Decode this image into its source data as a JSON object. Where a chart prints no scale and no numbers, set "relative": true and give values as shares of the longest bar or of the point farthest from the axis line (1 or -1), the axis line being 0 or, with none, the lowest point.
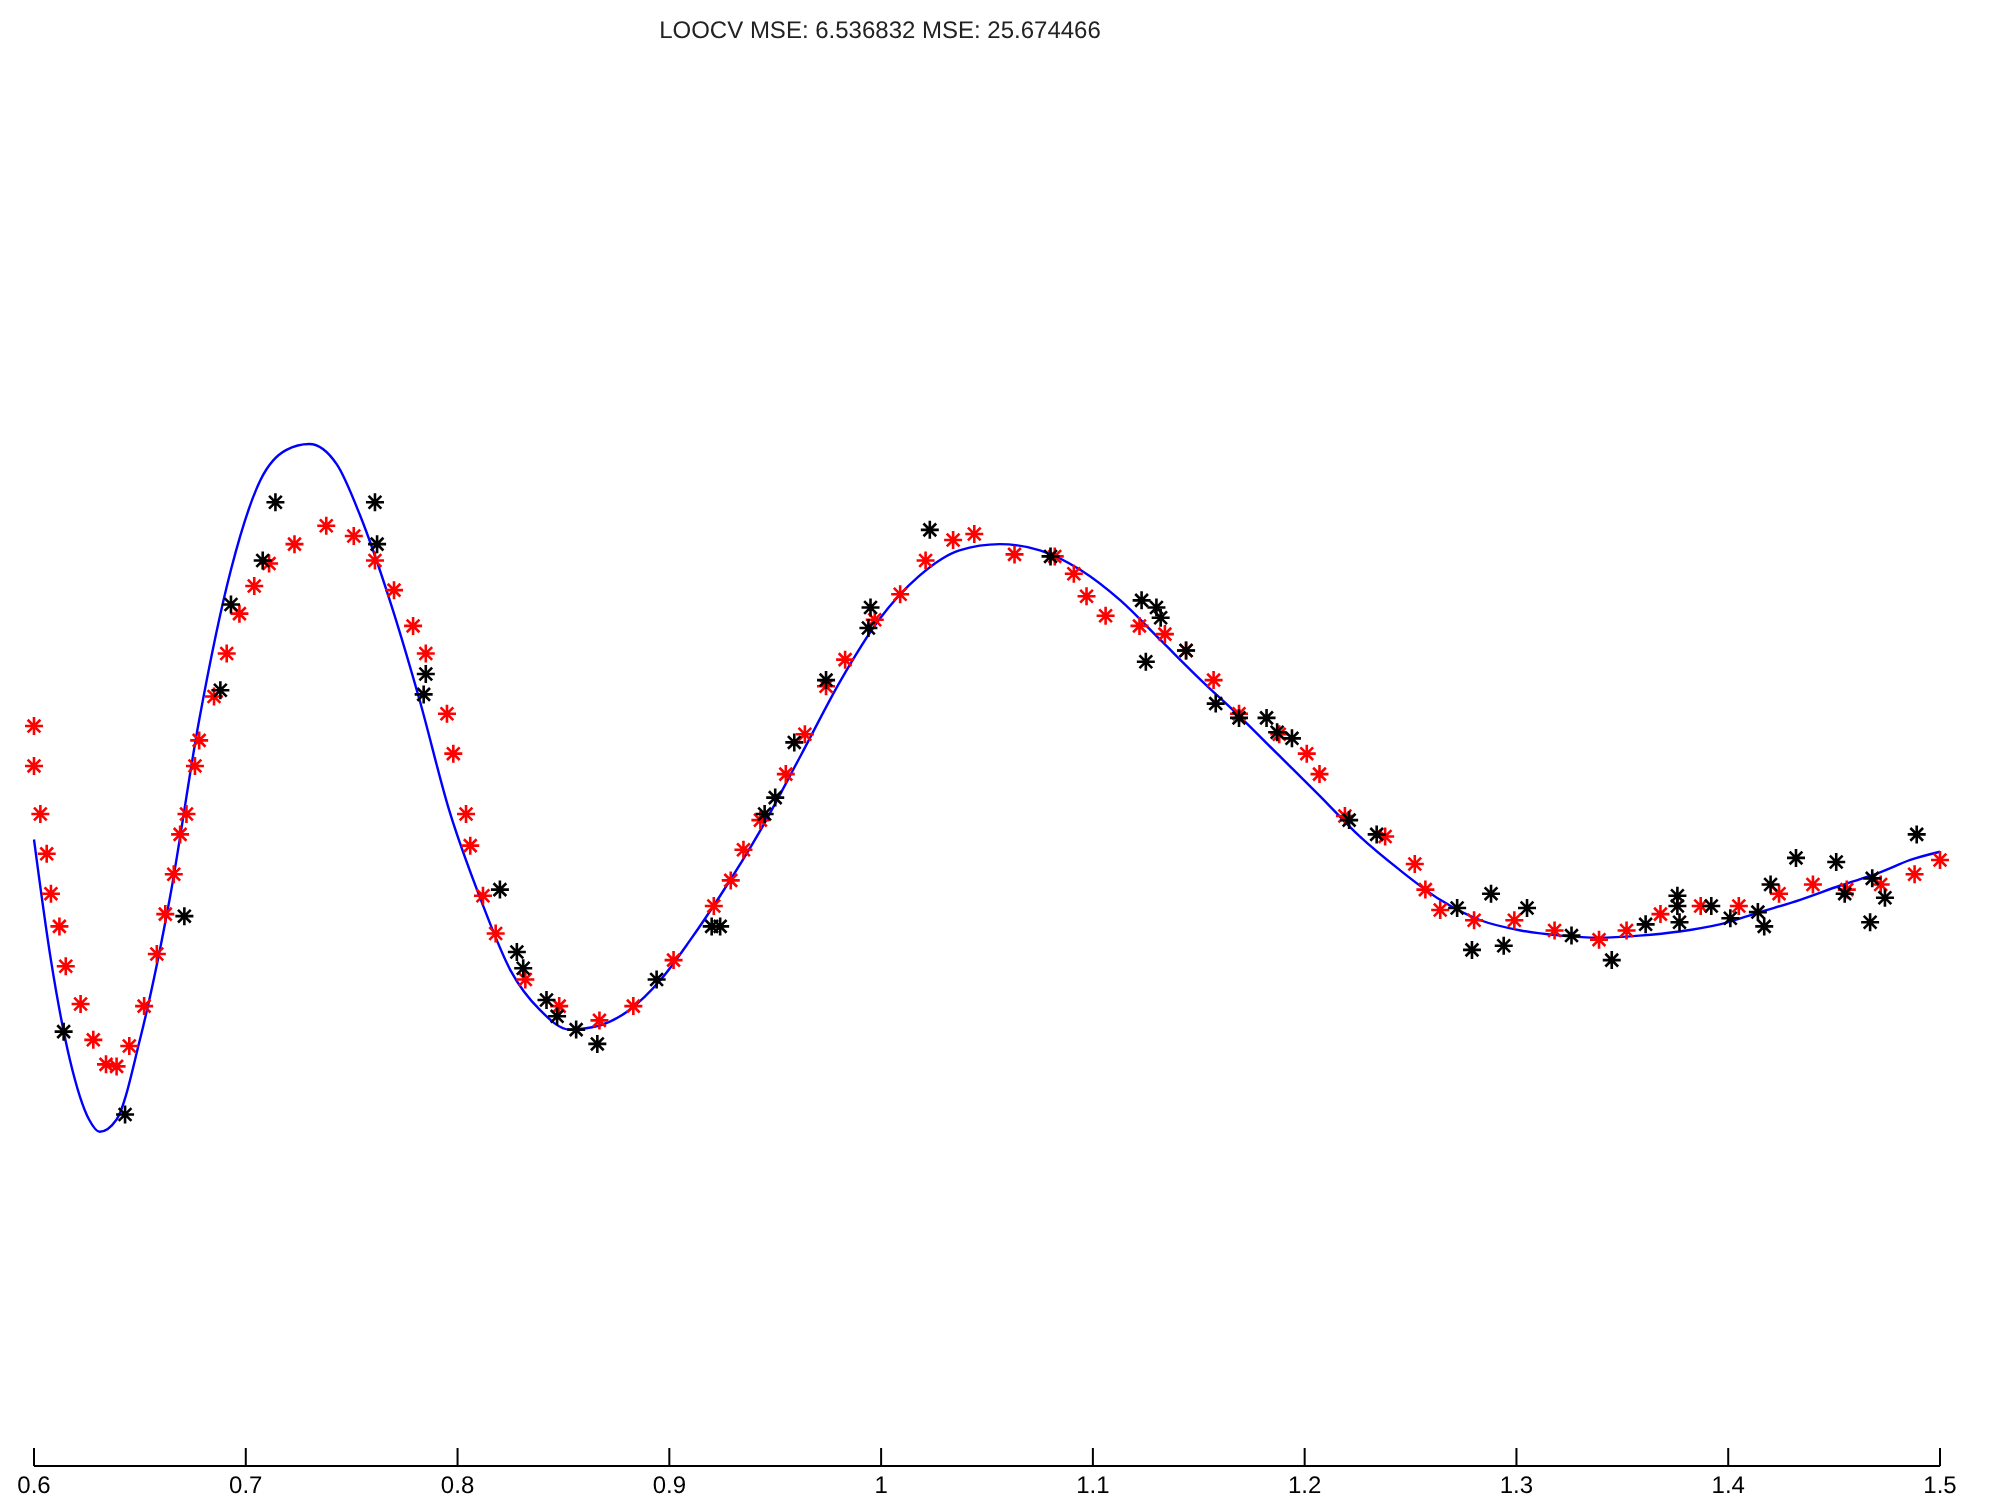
{
  "chart_data": {
    "type": "scatter",
    "title": "LOOCV MSE: 6.536832 MSE: 25.674466",
    "relative": true,
    "xlim": [
      0.6,
      1.5
    ],
    "xticks": [
      0.6,
      0.7,
      0.8,
      0.9,
      1,
      1.1,
      1.2,
      1.3,
      1.4,
      1.5
    ],
    "grid": false,
    "series": [
      {
        "type": "line",
        "color": "#0000ff",
        "marker": "none",
        "line_style": "solid",
        "x": [
          0.6,
          0.608,
          0.617,
          0.626,
          0.631,
          0.639,
          0.65,
          0.664,
          0.678,
          0.693,
          0.707,
          0.719,
          0.73,
          0.743,
          0.754,
          0.768,
          0.782,
          0.796,
          0.811,
          0.825,
          0.839,
          0.853,
          0.867,
          0.881,
          0.896,
          0.91,
          0.924,
          0.943,
          0.962,
          0.981,
          0.999,
          1.018,
          1.037,
          1.056,
          1.075,
          1.094,
          1.113,
          1.132,
          1.151,
          1.169,
          1.188,
          1.207,
          1.226,
          1.245,
          1.264,
          1.283,
          1.302,
          1.321,
          1.339,
          1.358,
          1.377,
          1.396,
          1.415,
          1.434,
          1.453,
          1.472,
          1.486,
          1.5
        ],
        "values": [
          0.613,
          0.495,
          0.397,
          0.339,
          0.327,
          0.339,
          0.417,
          0.554,
          0.73,
          0.877,
          0.965,
          0.994,
          1.0,
          0.98,
          0.93,
          0.847,
          0.75,
          0.642,
          0.554,
          0.485,
          0.446,
          0.427,
          0.431,
          0.446,
          0.476,
          0.515,
          0.558,
          0.622,
          0.695,
          0.769,
          0.828,
          0.871,
          0.896,
          0.902,
          0.896,
          0.877,
          0.847,
          0.808,
          0.769,
          0.734,
          0.695,
          0.656,
          0.616,
          0.583,
          0.554,
          0.534,
          0.524,
          0.519,
          0.517,
          0.519,
          0.523,
          0.53,
          0.542,
          0.554,
          0.568,
          0.581,
          0.593,
          0.601
        ]
      },
      {
        "color": "#ff0000",
        "marker": "cross",
        "x": [
          0.6,
          0.6,
          0.603,
          0.606,
          0.608,
          0.612,
          0.615,
          0.622,
          0.628,
          0.634,
          0.639,
          0.645,
          0.652,
          0.658,
          0.662,
          0.666,
          0.669,
          0.672,
          0.676,
          0.678,
          0.685,
          0.691,
          0.697,
          0.704,
          0.711,
          0.723,
          0.738,
          0.751,
          0.761,
          0.77,
          0.779,
          0.785,
          0.795,
          0.798,
          0.804,
          0.806,
          0.812,
          0.818,
          0.832,
          0.848,
          0.867,
          0.883,
          0.902,
          0.921,
          0.929,
          0.935,
          0.943,
          0.955,
          0.964,
          0.974,
          0.983,
          0.997,
          1.009,
          1.021,
          1.034,
          1.044,
          1.063,
          1.082,
          1.091,
          1.097,
          1.106,
          1.122,
          1.134,
          1.144,
          1.157,
          1.169,
          1.188,
          1.201,
          1.207,
          1.219,
          1.238,
          1.252,
          1.257,
          1.264,
          1.28,
          1.299,
          1.318,
          1.339,
          1.352,
          1.368,
          1.387,
          1.405,
          1.424,
          1.44,
          1.456,
          1.472,
          1.488,
          1.5
        ],
        "values": [
          0.724,
          0.685,
          0.638,
          0.599,
          0.56,
          0.528,
          0.489,
          0.452,
          0.417,
          0.393,
          0.391,
          0.411,
          0.45,
          0.501,
          0.54,
          0.579,
          0.618,
          0.638,
          0.685,
          0.71,
          0.753,
          0.795,
          0.834,
          0.861,
          0.883,
          0.902,
          0.92,
          0.91,
          0.886,
          0.857,
          0.822,
          0.795,
          0.736,
          0.697,
          0.638,
          0.607,
          0.558,
          0.521,
          0.476,
          0.45,
          0.436,
          0.45,
          0.495,
          0.548,
          0.573,
          0.603,
          0.632,
          0.677,
          0.716,
          0.763,
          0.789,
          0.828,
          0.853,
          0.886,
          0.906,
          0.912,
          0.892,
          0.89,
          0.873,
          0.851,
          0.832,
          0.822,
          0.814,
          0.798,
          0.769,
          0.736,
          0.716,
          0.697,
          0.677,
          0.636,
          0.616,
          0.589,
          0.564,
          0.544,
          0.534,
          0.534,
          0.524,
          0.515,
          0.524,
          0.54,
          0.548,
          0.548,
          0.56,
          0.569,
          0.564,
          0.569,
          0.579,
          0.593
        ]
      },
      {
        "color": "#000000",
        "marker": "cross",
        "x": [
          0.614,
          0.643,
          0.671,
          0.688,
          0.693,
          0.708,
          0.714,
          0.761,
          0.762,
          0.784,
          0.785,
          0.82,
          0.828,
          0.831,
          0.842,
          0.847,
          0.856,
          0.866,
          0.894,
          0.92,
          0.924,
          0.945,
          0.95,
          0.959,
          0.974,
          0.994,
          0.995,
          1.023,
          1.08,
          1.123,
          1.125,
          1.13,
          1.132,
          1.144,
          1.158,
          1.169,
          1.182,
          1.187,
          1.194,
          1.221,
          1.234,
          1.272,
          1.279,
          1.288,
          1.294,
          1.305,
          1.326,
          1.345,
          1.361,
          1.376,
          1.376,
          1.377,
          1.392,
          1.401,
          1.414,
          1.417,
          1.42,
          1.432,
          1.451,
          1.455,
          1.467,
          1.468,
          1.474,
          1.489
        ],
        "values": [
          0.425,
          0.344,
          0.538,
          0.759,
          0.843,
          0.886,
          0.943,
          0.943,
          0.902,
          0.755,
          0.775,
          0.564,
          0.503,
          0.487,
          0.456,
          0.44,
          0.427,
          0.413,
          0.476,
          0.528,
          0.528,
          0.638,
          0.654,
          0.708,
          0.769,
          0.82,
          0.84,
          0.916,
          0.89,
          0.847,
          0.787,
          0.84,
          0.83,
          0.798,
          0.746,
          0.732,
          0.732,
          0.718,
          0.712,
          0.632,
          0.618,
          0.546,
          0.505,
          0.56,
          0.509,
          0.546,
          0.519,
          0.495,
          0.53,
          0.558,
          0.548,
          0.532,
          0.548,
          0.536,
          0.542,
          0.528,
          0.569,
          0.595,
          0.591,
          0.56,
          0.532,
          0.575,
          0.556,
          0.618
        ]
      }
    ]
  }
}
